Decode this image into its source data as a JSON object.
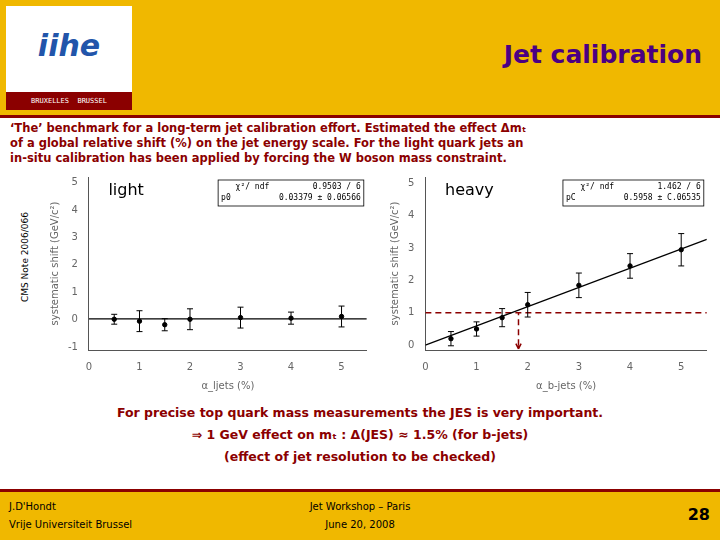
{
  "title": "Jet calibration",
  "title_color": "#4B0082",
  "background_color": "#F0B800",
  "main_color": "#FFFFFF",
  "separator_color": "#8B0000",
  "header_color": "#8B0000",
  "header_lines": [
    "‘The’ benchmark for a long-term jet calibration effort. Estimated the effect Δmₜ",
    "of a global relative shift (%) on the jet energy scale. For the light quark jets an",
    "in-situ calibration has been applied by forcing the W boson mass constraint."
  ],
  "side_note": "CMS Note 2006/066",
  "logo": {
    "text": "iihe",
    "color": "#2255AA",
    "band_text": "BRUXELLES  BRUSSEL",
    "band_color": "#8B0000"
  },
  "bottom_lines": [
    "For precise top quark mass measurements the JES is very important.",
    "⇒ 1 GeV effect on mₜ : Δ(JES) ≈ 1.5% (for b-jets)",
    "(effect of jet resolution to be checked)"
  ],
  "bottom_color": "#8B0000",
  "footer_left": [
    "J.D'Hondt",
    "Vrije Universiteit Brussel"
  ],
  "footer_center": [
    "Jet Workshop – Paris",
    "June 20, 2008"
  ],
  "footer_right": "28",
  "footer_color": "#000000",
  "chart_data": [
    {
      "type": "scatter",
      "plot_label": "light",
      "stats_box": [
        "χ²/ ndf         0.9503 / 6",
        "p0          0.03379 ± 0.06566"
      ],
      "x_label": "α_ljets (%)",
      "y_label": "systematic shift (GeV/c²)",
      "xlim": [
        0,
        5.5
      ],
      "ylim": [
        -1.1,
        5.2
      ],
      "xticks": [
        0,
        1,
        2,
        3,
        4,
        5
      ],
      "yticks": [
        -1,
        0,
        1,
        2,
        3,
        4,
        5
      ],
      "grid": false,
      "series": [
        {
          "type": "scatter",
          "marker": "o",
          "color": "#000000",
          "x": [
            0.5,
            1.0,
            1.5,
            2.0,
            3.0,
            4.0,
            5.0
          ],
          "values": [
            0.02,
            -0.05,
            -0.18,
            0.02,
            0.08,
            0.06,
            0.12
          ],
          "yerr": [
            0.18,
            0.38,
            0.22,
            0.38,
            0.38,
            0.22,
            0.38
          ]
        },
        {
          "type": "line",
          "line_style": "solid",
          "color": "#000000",
          "x": [
            0,
            5.5
          ],
          "values": [
            0.034,
            0.034
          ]
        }
      ]
    },
    {
      "type": "scatter",
      "plot_label": "heavy",
      "stats_box": [
        "χ²/ ndf         1.462 / 6",
        "pC          0.5958 ± C.06535"
      ],
      "x_label": "α_b-jets (%)",
      "y_label": "systematic shift (GeV/c²)",
      "xlim": [
        0,
        5.5
      ],
      "ylim": [
        -0.15,
        5.2
      ],
      "xticks": [
        0,
        1,
        2,
        3,
        4,
        5
      ],
      "yticks": [
        0,
        1,
        2,
        3,
        4,
        5
      ],
      "grid": false,
      "series": [
        {
          "type": "scatter",
          "marker": "o",
          "color": "#000000",
          "x": [
            0.5,
            1.0,
            1.5,
            2.0,
            3.0,
            4.0,
            5.0
          ],
          "values": [
            0.2,
            0.5,
            0.85,
            1.25,
            1.85,
            2.45,
            2.95
          ],
          "yerr": [
            0.22,
            0.22,
            0.28,
            0.38,
            0.38,
            0.38,
            0.5
          ]
        },
        {
          "type": "line",
          "line_style": "solid",
          "color": "#000000",
          "x": [
            0,
            5.5
          ],
          "values": [
            0,
            3.2725
          ]
        },
        {
          "type": "line",
          "line_style": "dashed",
          "color": "#8B0000",
          "x": [
            0,
            5.5
          ],
          "values": [
            1.0,
            1.0
          ]
        },
        {
          "type": "line",
          "line_style": "dashed",
          "color": "#8B0000",
          "x": [
            1.82,
            1.82
          ],
          "values": [
            0,
            1.0
          ]
        },
        {
          "type": "arrow",
          "color": "#8B0000",
          "x": [
            1.82,
            1.82
          ],
          "values": [
            0.0,
            -0.12
          ]
        }
      ]
    }
  ]
}
